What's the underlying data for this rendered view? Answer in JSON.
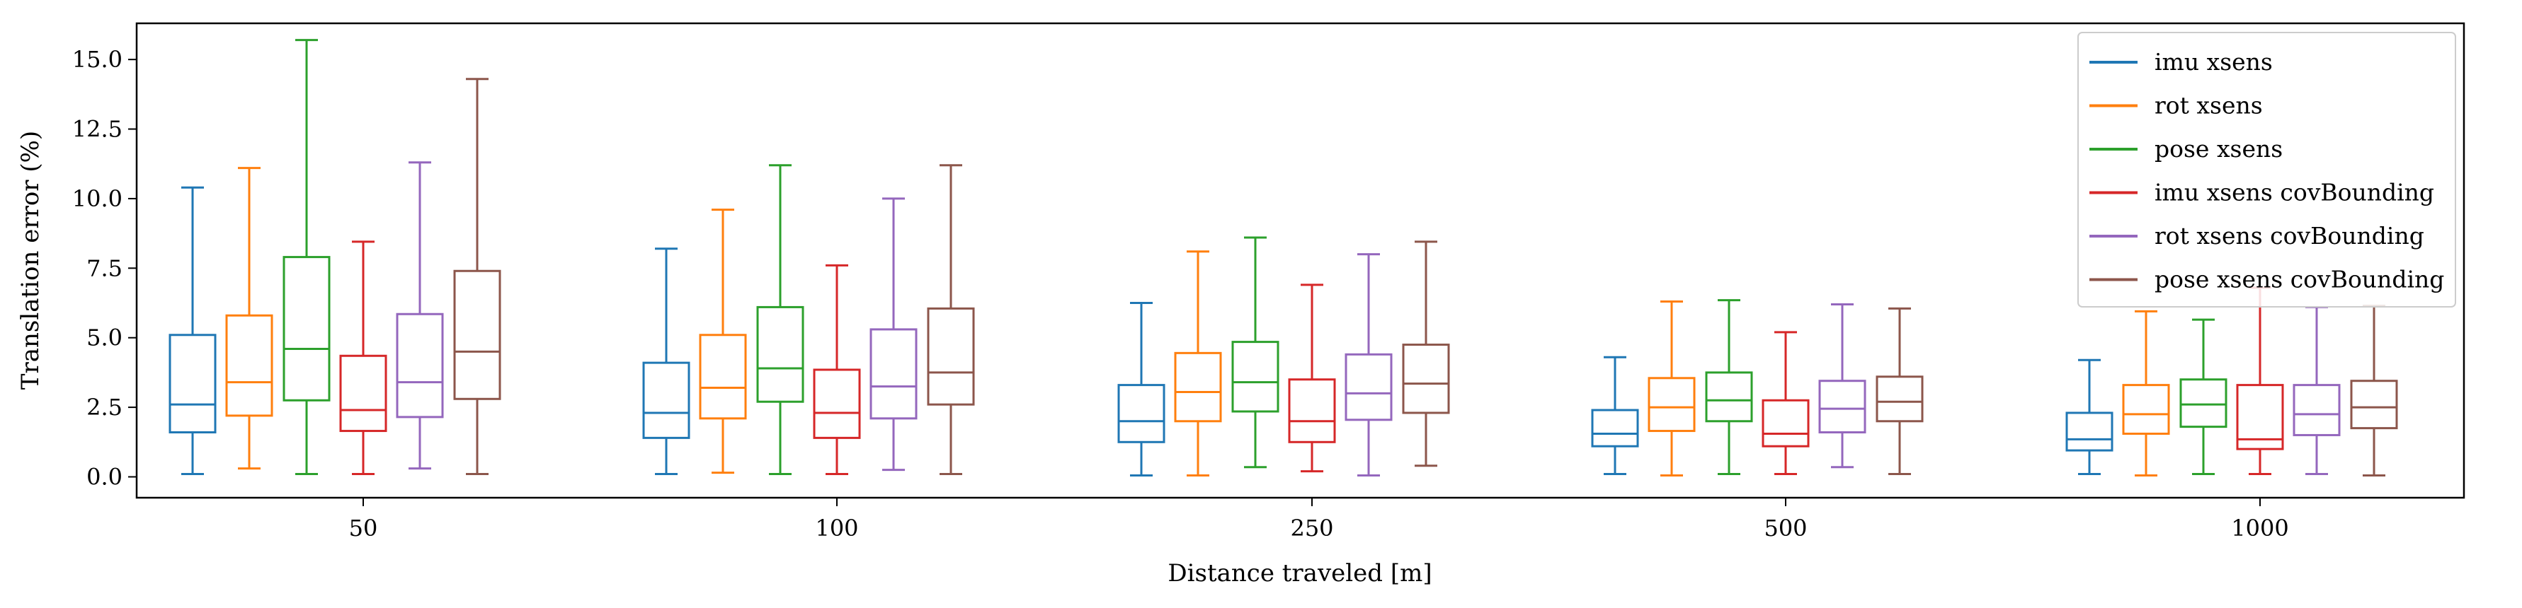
{
  "chart_data": {
    "type": "box",
    "xlabel": "Distance traveled [m]",
    "ylabel": "Translation error (%)",
    "categories": [
      "50",
      "100",
      "250",
      "500",
      "1000"
    ],
    "ylim": [
      -0.75,
      16.3
    ],
    "yticks": [
      "0.0",
      "2.5",
      "5.0",
      "7.5",
      "10.0",
      "12.5",
      "15.0"
    ],
    "legend_position": "top-right",
    "series": [
      {
        "name": "imu xsens",
        "color": "#1f77b4",
        "boxes": [
          {
            "whislo": 0.1,
            "q1": 1.6,
            "med": 2.6,
            "q3": 5.1,
            "whishi": 10.4
          },
          {
            "whislo": 0.1,
            "q1": 1.4,
            "med": 2.3,
            "q3": 4.1,
            "whishi": 8.2
          },
          {
            "whislo": 0.05,
            "q1": 1.25,
            "med": 2.0,
            "q3": 3.3,
            "whishi": 6.25
          },
          {
            "whislo": 0.1,
            "q1": 1.1,
            "med": 1.55,
            "q3": 2.4,
            "whishi": 4.3
          },
          {
            "whislo": 0.1,
            "q1": 0.95,
            "med": 1.35,
            "q3": 2.3,
            "whishi": 4.2
          }
        ]
      },
      {
        "name": "rot xsens",
        "color": "#ff7f0e",
        "boxes": [
          {
            "whislo": 0.3,
            "q1": 2.2,
            "med": 3.4,
            "q3": 5.8,
            "whishi": 11.1
          },
          {
            "whislo": 0.15,
            "q1": 2.1,
            "med": 3.2,
            "q3": 5.1,
            "whishi": 9.6
          },
          {
            "whislo": 0.05,
            "q1": 2.0,
            "med": 3.05,
            "q3": 4.45,
            "whishi": 8.1
          },
          {
            "whislo": 0.05,
            "q1": 1.65,
            "med": 2.5,
            "q3": 3.55,
            "whishi": 6.3
          },
          {
            "whislo": 0.05,
            "q1": 1.55,
            "med": 2.25,
            "q3": 3.3,
            "whishi": 5.95
          }
        ]
      },
      {
        "name": "pose xsens",
        "color": "#2ca02c",
        "boxes": [
          {
            "whislo": 0.1,
            "q1": 2.75,
            "med": 4.6,
            "q3": 7.9,
            "whishi": 15.7
          },
          {
            "whislo": 0.1,
            "q1": 2.7,
            "med": 3.9,
            "q3": 6.1,
            "whishi": 11.2
          },
          {
            "whislo": 0.35,
            "q1": 2.35,
            "med": 3.4,
            "q3": 4.85,
            "whishi": 8.6
          },
          {
            "whislo": 0.1,
            "q1": 2.0,
            "med": 2.75,
            "q3": 3.75,
            "whishi": 6.35
          },
          {
            "whislo": 0.1,
            "q1": 1.8,
            "med": 2.6,
            "q3": 3.5,
            "whishi": 5.65
          }
        ]
      },
      {
        "name": "imu xsens covBounding",
        "color": "#d62728",
        "boxes": [
          {
            "whislo": 0.1,
            "q1": 1.65,
            "med": 2.4,
            "q3": 4.35,
            "whishi": 8.45
          },
          {
            "whislo": 0.1,
            "q1": 1.4,
            "med": 2.3,
            "q3": 3.85,
            "whishi": 7.6
          },
          {
            "whislo": 0.2,
            "q1": 1.25,
            "med": 2.0,
            "q3": 3.5,
            "whishi": 6.9
          },
          {
            "whislo": 0.1,
            "q1": 1.1,
            "med": 1.55,
            "q3": 2.75,
            "whishi": 5.2
          },
          {
            "whislo": 0.1,
            "q1": 1.0,
            "med": 1.35,
            "q3": 3.3,
            "whishi": 6.8
          }
        ]
      },
      {
        "name": "rot xsens covBounding",
        "color": "#9467bd",
        "boxes": [
          {
            "whislo": 0.3,
            "q1": 2.15,
            "med": 3.4,
            "q3": 5.85,
            "whishi": 11.3
          },
          {
            "whislo": 0.25,
            "q1": 2.1,
            "med": 3.25,
            "q3": 5.3,
            "whishi": 10.0
          },
          {
            "whislo": 0.05,
            "q1": 2.05,
            "med": 3.0,
            "q3": 4.4,
            "whishi": 8.0
          },
          {
            "whislo": 0.35,
            "q1": 1.6,
            "med": 2.45,
            "q3": 3.45,
            "whishi": 6.2
          },
          {
            "whislo": 0.1,
            "q1": 1.5,
            "med": 2.25,
            "q3": 3.3,
            "whishi": 6.1
          }
        ]
      },
      {
        "name": "pose xsens covBounding",
        "color": "#8c564b",
        "boxes": [
          {
            "whislo": 0.1,
            "q1": 2.8,
            "med": 4.5,
            "q3": 7.4,
            "whishi": 14.3
          },
          {
            "whislo": 0.1,
            "q1": 2.6,
            "med": 3.75,
            "q3": 6.05,
            "whishi": 11.2
          },
          {
            "whislo": 0.4,
            "q1": 2.3,
            "med": 3.35,
            "q3": 4.75,
            "whishi": 8.45
          },
          {
            "whislo": 0.1,
            "q1": 2.0,
            "med": 2.7,
            "q3": 3.6,
            "whishi": 6.05
          },
          {
            "whislo": 0.05,
            "q1": 1.75,
            "med": 2.5,
            "q3": 3.45,
            "whishi": 6.15
          }
        ]
      }
    ]
  }
}
